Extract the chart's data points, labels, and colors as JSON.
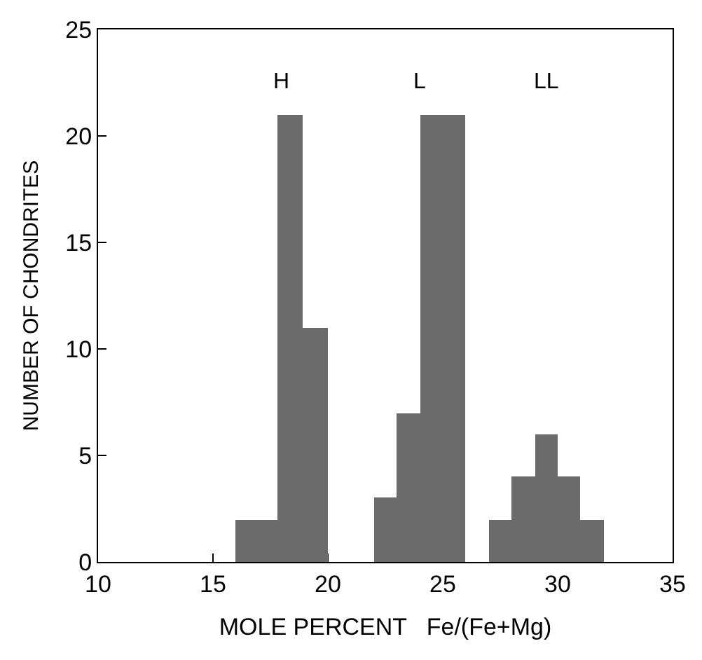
{
  "chart_data": {
    "type": "histogram",
    "xlabel": "MOLE PERCENT   Fe/(Fe+Mg)",
    "ylabel": "NUMBER OF CHONDRITES",
    "bins": [
      16,
      17.8,
      18.9,
      20,
      22,
      23,
      24,
      26,
      27,
      28,
      29,
      30,
      31,
      32
    ],
    "values": [
      2,
      21,
      11,
      0,
      3,
      7,
      21,
      0,
      2,
      4,
      6,
      4,
      2
    ],
    "color": "#6b6b6b",
    "xlim": [
      10,
      35
    ],
    "xticks": [
      10,
      15,
      20,
      25,
      30,
      35
    ],
    "ylim": [
      0,
      25
    ],
    "yticks": [
      0,
      5,
      10,
      15,
      20,
      25
    ],
    "annotations": [
      "H",
      "L",
      "LL"
    ]
  }
}
